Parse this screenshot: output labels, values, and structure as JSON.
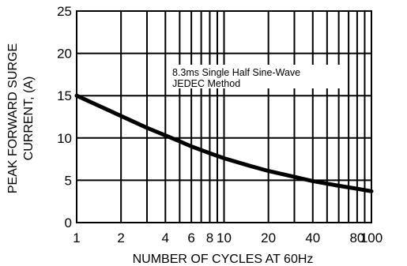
{
  "chart_data": {
    "type": "line",
    "x_scale": "log",
    "xlim": [
      1,
      100
    ],
    "ylim": [
      0,
      25
    ],
    "grid": true,
    "xlabel": "NUMBER OF CYCLES AT 60Hz",
    "ylabel_lines": [
      "PEAK FORWARD SURGE",
      "CURRENT, (A)"
    ],
    "annotation_lines": [
      "8.3ms Single Half Sine-Wave",
      "JEDEC Method"
    ],
    "x_tick_labels": [
      "1",
      "2",
      "4",
      "6",
      "8",
      "10",
      "20",
      "40",
      "80",
      "100"
    ],
    "y_tick_labels": [
      "0",
      "5",
      "10",
      "15",
      "20",
      "25"
    ],
    "series": [
      {
        "x": [
          1,
          1.5,
          2,
          3,
          4,
          5,
          6,
          8,
          10,
          15,
          20,
          30,
          40,
          50,
          60,
          80,
          100
        ],
        "y": [
          15,
          13.6,
          12.6,
          11.2,
          10.3,
          9.6,
          9.0,
          8.2,
          7.6,
          6.7,
          6.1,
          5.4,
          4.9,
          4.6,
          4.35,
          4.0,
          3.7
        ]
      }
    ],
    "colors": {
      "line": "#000000",
      "grid": "#000000"
    }
  }
}
